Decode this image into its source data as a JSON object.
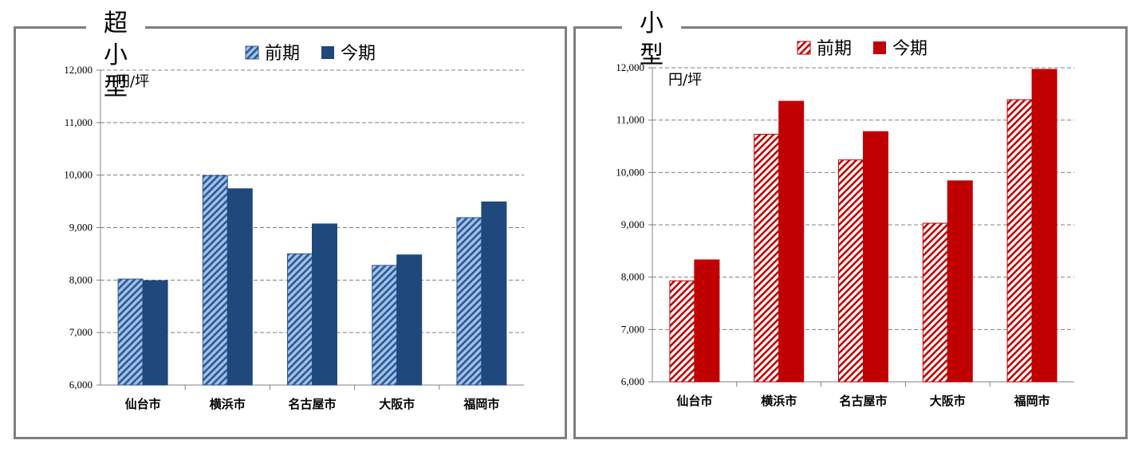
{
  "chart_data": [
    {
      "type": "bar",
      "title": "超小型",
      "unit_label": "円/坪",
      "categories": [
        "仙台市",
        "横浜市",
        "名古屋市",
        "大阪市",
        "福岡市"
      ],
      "series": [
        {
          "name": "前期",
          "values": [
            8020,
            9990,
            8500,
            8280,
            9190
          ]
        },
        {
          "name": "今期",
          "values": [
            7990,
            9740,
            9070,
            8480,
            9490
          ]
        }
      ],
      "ylim": [
        6000,
        12000
      ],
      "yticks": [
        "6,000",
        "7,000",
        "8,000",
        "9,000",
        "10,000",
        "11,000",
        "12,000"
      ],
      "grid": true,
      "legend": "top",
      "colors": {
        "prev": "#2f5597",
        "prev_stripe": "#9dc3e6",
        "curr": "#1f497d"
      }
    },
    {
      "type": "bar",
      "title": "小型",
      "unit_label": "円/坪",
      "categories": [
        "仙台市",
        "横浜市",
        "名古屋市",
        "大阪市",
        "福岡市"
      ],
      "series": [
        {
          "name": "前期",
          "values": [
            7930,
            10730,
            10240,
            9030,
            11390
          ]
        },
        {
          "name": "今期",
          "values": [
            8330,
            11360,
            10780,
            9840,
            11970
          ]
        }
      ],
      "ylim": [
        6000,
        12000
      ],
      "yticks": [
        "6,000",
        "7,000",
        "8,000",
        "9,000",
        "10,000",
        "11,000",
        "12,000"
      ],
      "grid": true,
      "legend": "top",
      "colors": {
        "prev": "#c00000",
        "prev_stripe": "#ffffff",
        "curr": "#c00000"
      }
    }
  ]
}
